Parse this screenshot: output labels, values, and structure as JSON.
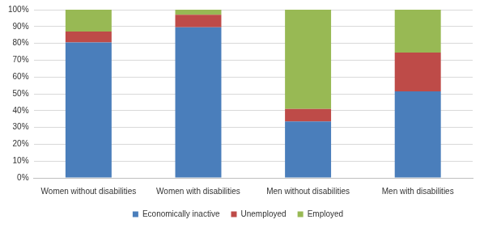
{
  "chart_data": {
    "type": "bar",
    "stacked": true,
    "grid": true,
    "legend": "bottom",
    "categories": [
      "Women without disabilities",
      "Women with disabilities",
      "Men without disabilities",
      "Men with disabilities"
    ],
    "series": [
      {
        "name": "Economically inactive",
        "color": "#4a7ebb",
        "values": [
          80.5,
          89.5,
          33.5,
          51.5
        ]
      },
      {
        "name": "Unemployed",
        "color": "#be4b48",
        "values": [
          6.5,
          7.5,
          7.5,
          23
        ]
      },
      {
        "name": "Employed",
        "color": "#98b954",
        "values": [
          13,
          3,
          59,
          25.5
        ]
      }
    ],
    "ylim": [
      0,
      100
    ],
    "yticks": [
      {
        "value": 0,
        "label": "0%"
      },
      {
        "value": 10,
        "label": "10%"
      },
      {
        "value": 20,
        "label": "20%"
      },
      {
        "value": 30,
        "label": "30%"
      },
      {
        "value": 40,
        "label": "40%"
      },
      {
        "value": 50,
        "label": "50%"
      },
      {
        "value": 60,
        "label": "60%"
      },
      {
        "value": 70,
        "label": "70%"
      },
      {
        "value": 80,
        "label": "80%"
      },
      {
        "value": 90,
        "label": "90%"
      },
      {
        "value": 100,
        "label": "100%"
      }
    ]
  }
}
